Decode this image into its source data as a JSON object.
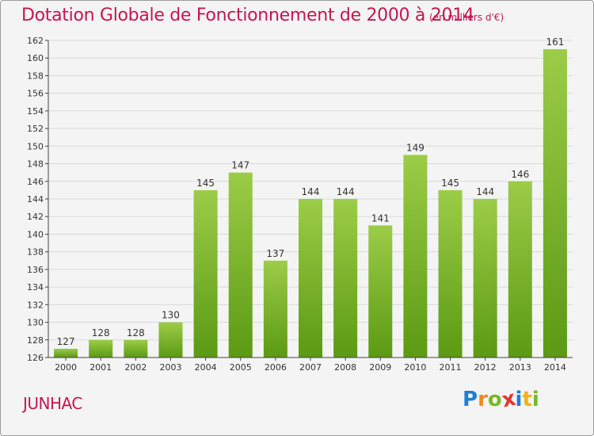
{
  "title": "Dotation Globale de Fonctionnement de 2000 à 2014",
  "unit_note": "(en milliers d'€)",
  "commune": "JUNHAC",
  "logo": {
    "letters": [
      "P",
      "r",
      "o",
      "x",
      "i",
      "t",
      "i"
    ],
    "colors": [
      "#1f7fd0",
      "#f08a1c",
      "#77b82a",
      "#e2362b",
      "#1f7fd0",
      "#f0b21c",
      "#77b82a"
    ]
  },
  "colors": {
    "bar_light": "#9ccc48",
    "bar_dark": "#5b9a12",
    "grid": "#d9d9d9",
    "axis": "#444444",
    "text": "#333333"
  },
  "chart_data": {
    "type": "bar",
    "categories": [
      "2000",
      "2001",
      "2002",
      "2003",
      "2004",
      "2005",
      "2006",
      "2007",
      "2008",
      "2009",
      "2010",
      "2011",
      "2012",
      "2013",
      "2014"
    ],
    "values": [
      127,
      128,
      128,
      130,
      145,
      147,
      137,
      144,
      144,
      141,
      149,
      145,
      144,
      146,
      161
    ],
    "ylim": [
      126,
      162
    ],
    "yticks": [
      126,
      128,
      130,
      132,
      134,
      136,
      138,
      140,
      142,
      144,
      146,
      148,
      150,
      152,
      154,
      156,
      158,
      160,
      162
    ],
    "grid": true
  }
}
